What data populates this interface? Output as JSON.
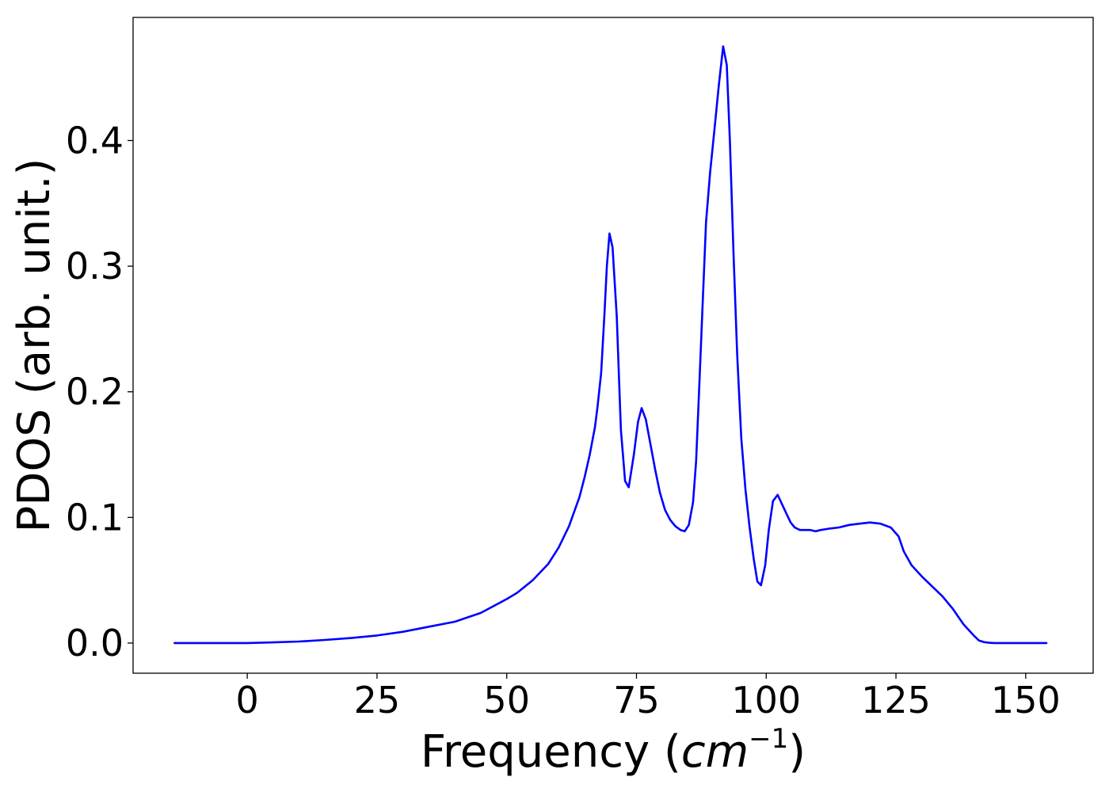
{
  "chart_data": {
    "type": "line",
    "xlabel": "Frequency (cm⁻¹)",
    "xlabel_parts": {
      "prefix": "Frequency (",
      "unit_base": "cm",
      "unit_exp": "−1",
      "suffix": ")"
    },
    "ylabel": "PDOS (arb. unit.)",
    "xlim": [
      -22,
      163
    ],
    "ylim": [
      -0.024,
      0.498
    ],
    "xticks": [
      0,
      25,
      50,
      75,
      100,
      125,
      150
    ],
    "xtick_labels": [
      "0",
      "25",
      "50",
      "75",
      "100",
      "125",
      "150"
    ],
    "yticks": [
      0.0,
      0.1,
      0.2,
      0.3,
      0.4
    ],
    "ytick_labels": [
      "0.0",
      "0.1",
      "0.2",
      "0.3",
      "0.4"
    ],
    "grid": false,
    "legend": "none",
    "series": [
      {
        "color": "#0000ff",
        "x": [
          -14,
          -5,
          0,
          5,
          10,
          15,
          20,
          25,
          30,
          35,
          40,
          45,
          50,
          52,
          55,
          58,
          60,
          62,
          64,
          65,
          66,
          67,
          67.5,
          68.2,
          68.8,
          69.3,
          69.8,
          70.4,
          71.2,
          72,
          72.8,
          73.5,
          74.5,
          75.3,
          76,
          76.8,
          77.7,
          78.6,
          79.5,
          80.5,
          81.5,
          82.5,
          83.5,
          84.3,
          85.1,
          85.9,
          86.5,
          87.1,
          87.7,
          88.4,
          89.2,
          90,
          90.9,
          91.7,
          92.4,
          93,
          93.7,
          94.4,
          95.2,
          96,
          96.8,
          97.6,
          98.3,
          99,
          99.8,
          100.5,
          101.3,
          102.2,
          103,
          103.9,
          104.7,
          105.5,
          106.5,
          107.5,
          108.5,
          109.5,
          110.5,
          112,
          114,
          116,
          118,
          120,
          122,
          124,
          125.5,
          126.5,
          128,
          130,
          132,
          134,
          136,
          138,
          140,
          141,
          142,
          143,
          144,
          145,
          147,
          150,
          154
        ],
        "y": [
          0.0,
          0.0,
          0.0,
          0.0005,
          0.0012,
          0.0025,
          0.004,
          0.006,
          0.009,
          0.013,
          0.017,
          0.024,
          0.035,
          0.04,
          0.05,
          0.063,
          0.076,
          0.093,
          0.116,
          0.132,
          0.15,
          0.172,
          0.188,
          0.215,
          0.26,
          0.3,
          0.326,
          0.315,
          0.26,
          0.17,
          0.129,
          0.124,
          0.15,
          0.176,
          0.187,
          0.178,
          0.158,
          0.138,
          0.12,
          0.106,
          0.098,
          0.093,
          0.09,
          0.089,
          0.094,
          0.112,
          0.145,
          0.205,
          0.265,
          0.335,
          0.375,
          0.408,
          0.445,
          0.475,
          0.46,
          0.4,
          0.31,
          0.23,
          0.163,
          0.122,
          0.092,
          0.067,
          0.049,
          0.046,
          0.062,
          0.09,
          0.113,
          0.118,
          0.111,
          0.103,
          0.096,
          0.092,
          0.09,
          0.09,
          0.09,
          0.089,
          0.09,
          0.091,
          0.092,
          0.094,
          0.095,
          0.096,
          0.095,
          0.092,
          0.085,
          0.073,
          0.062,
          0.053,
          0.045,
          0.037,
          0.027,
          0.015,
          0.006,
          0.002,
          0.0007,
          0.0002,
          0.0,
          0.0,
          0.0,
          0.0,
          0.0
        ]
      }
    ]
  }
}
